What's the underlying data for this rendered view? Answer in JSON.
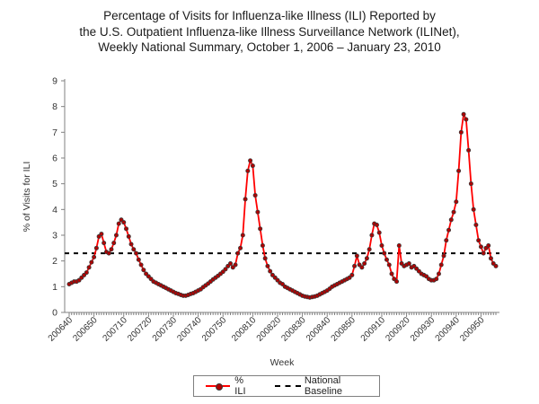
{
  "title": {
    "line1": "Percentage of Visits for Influenza-like Illness (ILI) Reported by",
    "line2": "the U.S. Outpatient Influenza-like Illness Surveillance Network (ILINet),",
    "line3": "Weekly National Summary, October 1, 2006 – January 23, 2010"
  },
  "legend": {
    "ili_label": "% ILI",
    "baseline_label": "National Baseline"
  },
  "colors": {
    "line": "#FF0000",
    "marker_fill": "#B00000",
    "marker_edge": "#3a3a3a",
    "baseline": "#000000",
    "axis": "#808080",
    "tick_text": "#333333"
  },
  "chart_data": {
    "type": "line",
    "title": "Percentage of Visits for Influenza-like Illness (ILI) Reported by the U.S. Outpatient Influenza-like Illness Surveillance Network (ILINet), Weekly National Summary, October 1, 2006 – January 23, 2010",
    "xlabel": "Week",
    "ylabel": "% of Visits for ILI",
    "ylim": [
      0,
      9
    ],
    "y_ticks": [
      0,
      1,
      2,
      3,
      4,
      5,
      6,
      7,
      8,
      9
    ],
    "grid": false,
    "legend_position": "bottom",
    "national_baseline": 2.3,
    "week_ranges": [
      [
        2006,
        40,
        52
      ],
      [
        2007,
        1,
        52
      ],
      [
        2008,
        1,
        52
      ],
      [
        2009,
        1,
        53
      ],
      [
        2010,
        1,
        3
      ]
    ],
    "x_tick_labels": [
      "200640",
      "200650",
      "200710",
      "200720",
      "200730",
      "200740",
      "200750",
      "200810",
      "200820",
      "200830",
      "200840",
      "200850",
      "200910",
      "200920",
      "200930",
      "200940",
      "200950"
    ],
    "series": [
      {
        "name": "% ILI",
        "values": [
          1.1,
          1.15,
          1.2,
          1.2,
          1.25,
          1.35,
          1.45,
          1.55,
          1.75,
          1.95,
          2.15,
          2.5,
          2.95,
          3.05,
          2.7,
          2.35,
          2.3,
          2.45,
          2.7,
          3.0,
          3.45,
          3.6,
          3.5,
          3.25,
          2.95,
          2.65,
          2.45,
          2.3,
          2.05,
          1.85,
          1.65,
          1.5,
          1.4,
          1.3,
          1.2,
          1.15,
          1.1,
          1.05,
          1.0,
          0.95,
          0.9,
          0.85,
          0.8,
          0.75,
          0.72,
          0.68,
          0.65,
          0.65,
          0.68,
          0.72,
          0.75,
          0.8,
          0.85,
          0.9,
          0.98,
          1.05,
          1.12,
          1.2,
          1.28,
          1.35,
          1.42,
          1.5,
          1.58,
          1.68,
          1.8,
          1.9,
          1.75,
          1.85,
          2.3,
          2.5,
          3.0,
          4.4,
          5.5,
          5.9,
          5.7,
          4.55,
          3.9,
          3.25,
          2.6,
          2.1,
          1.8,
          1.6,
          1.45,
          1.35,
          1.25,
          1.15,
          1.1,
          1.0,
          0.95,
          0.9,
          0.85,
          0.8,
          0.75,
          0.7,
          0.65,
          0.62,
          0.6,
          0.58,
          0.6,
          0.62,
          0.65,
          0.7,
          0.75,
          0.8,
          0.85,
          0.92,
          1.0,
          1.05,
          1.1,
          1.15,
          1.2,
          1.25,
          1.3,
          1.35,
          1.45,
          1.8,
          2.2,
          1.85,
          1.75,
          1.9,
          2.1,
          2.45,
          3.0,
          3.45,
          3.4,
          3.1,
          2.6,
          2.3,
          2.05,
          1.85,
          1.5,
          1.3,
          1.2,
          2.6,
          1.9,
          1.8,
          1.85,
          1.9,
          1.75,
          1.8,
          1.7,
          1.6,
          1.5,
          1.45,
          1.4,
          1.3,
          1.25,
          1.25,
          1.3,
          1.5,
          1.85,
          2.2,
          2.8,
          3.2,
          3.6,
          3.9,
          4.3,
          5.5,
          7.0,
          7.7,
          7.5,
          6.3,
          5.0,
          4.0,
          3.4,
          2.8,
          2.55,
          2.3,
          2.5,
          2.6,
          2.1,
          1.9,
          1.8
        ]
      }
    ]
  }
}
